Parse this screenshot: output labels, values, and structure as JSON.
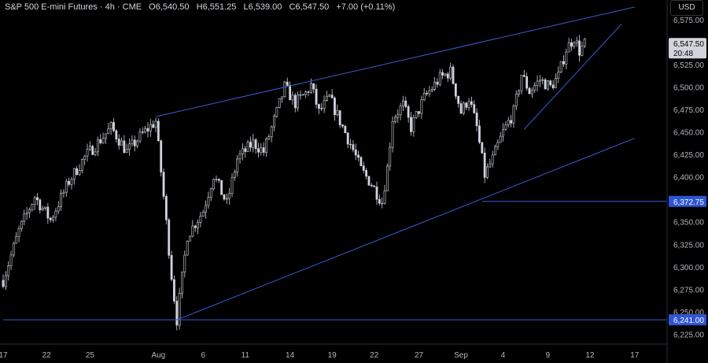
{
  "header": {
    "symbol": "S&P 500 E-mini Futures",
    "interval": "4h",
    "exchange": "CME",
    "open_label": "O",
    "open": "6,540.50",
    "high_label": "H",
    "high": "6,551.25",
    "low_label": "L",
    "low": "6,539.00",
    "close_label": "C",
    "close": "6,547.50",
    "change": "+7.00 (+0.11%)"
  },
  "currency": "USD",
  "colors": {
    "background": "#000000",
    "candle": "#d1d4dc",
    "trendline": "#3b5bd6",
    "price_badge": "#2f55d4"
  },
  "chart_data": {
    "type": "candlestick",
    "y_ticks": [
      "6,575.00",
      "6,550.00",
      "6,525.00",
      "6,500.00",
      "6,475.00",
      "6,450.00",
      "6,425.00",
      "6,400.00",
      "6,375.00",
      "6,350.00",
      "6,325.00",
      "6,300.00",
      "6,275.00",
      "6,250.00",
      "6,225.00"
    ],
    "y_tick_values": [
      6575,
      6550,
      6525,
      6500,
      6475,
      6450,
      6425,
      6400,
      6375,
      6350,
      6325,
      6300,
      6275,
      6250,
      6225
    ],
    "ylim": [
      6214,
      6588
    ],
    "x_ticks": [
      "17",
      "22",
      "25",
      "Aug",
      "6",
      "11",
      "14",
      "19",
      "22",
      "27",
      "Sep",
      "4",
      "9",
      "12",
      "17"
    ],
    "x_tick_index": [
      0,
      16.5,
      33,
      59,
      76,
      92,
      109,
      125,
      141,
      158,
      174,
      190,
      207,
      223,
      240
    ],
    "last_price": {
      "value": 6547.5,
      "label": "6,547.50",
      "countdown": "20:48"
    },
    "levels": [
      {
        "value": 6372.75,
        "label": "6,372.75",
        "from_index": 182
      },
      {
        "value": 6241.0,
        "label": "6,241.00",
        "from_index": 0
      }
    ],
    "trendlines": [
      {
        "from": [
          58,
          6467
        ],
        "to": [
          240,
          6589
        ]
      },
      {
        "from": [
          66,
          6241
        ],
        "to": [
          240,
          6443
        ]
      },
      {
        "from": [
          198,
          6453
        ],
        "to": [
          235,
          6570
        ]
      }
    ],
    "anchors": [
      [
        0,
        6285
      ],
      [
        6,
        6340
      ],
      [
        12,
        6378
      ],
      [
        18,
        6352
      ],
      [
        25,
        6395
      ],
      [
        31,
        6422
      ],
      [
        36,
        6438
      ],
      [
        41,
        6455
      ],
      [
        47,
        6428
      ],
      [
        53,
        6448
      ],
      [
        58,
        6462
      ],
      [
        61,
        6378
      ],
      [
        64,
        6290
      ],
      [
        66,
        6241
      ],
      [
        70,
        6335
      ],
      [
        76,
        6362
      ],
      [
        80,
        6402
      ],
      [
        85,
        6370
      ],
      [
        89,
        6420
      ],
      [
        95,
        6438
      ],
      [
        99,
        6428
      ],
      [
        104,
        6472
      ],
      [
        107,
        6500
      ],
      [
        111,
        6482
      ],
      [
        115,
        6493
      ],
      [
        117,
        6502
      ],
      [
        120,
        6472
      ],
      [
        124,
        6488
      ],
      [
        128,
        6462
      ],
      [
        133,
        6430
      ],
      [
        136,
        6408
      ],
      [
        140,
        6392
      ],
      [
        144,
        6372
      ],
      [
        146,
        6410
      ],
      [
        148,
        6465
      ],
      [
        152,
        6480
      ],
      [
        155,
        6455
      ],
      [
        160,
        6488
      ],
      [
        166,
        6510
      ],
      [
        170,
        6517
      ],
      [
        174,
        6472
      ],
      [
        177,
        6488
      ],
      [
        180,
        6455
      ],
      [
        183,
        6402
      ],
      [
        186,
        6420
      ],
      [
        190,
        6450
      ],
      [
        194,
        6472
      ],
      [
        197,
        6514
      ],
      [
        200,
        6495
      ],
      [
        204,
        6508
      ],
      [
        208,
        6500
      ],
      [
        211,
        6512
      ],
      [
        214,
        6542
      ],
      [
        217,
        6555
      ],
      [
        219,
        6540
      ],
      [
        221,
        6548
      ]
    ],
    "candle_count": 222
  }
}
